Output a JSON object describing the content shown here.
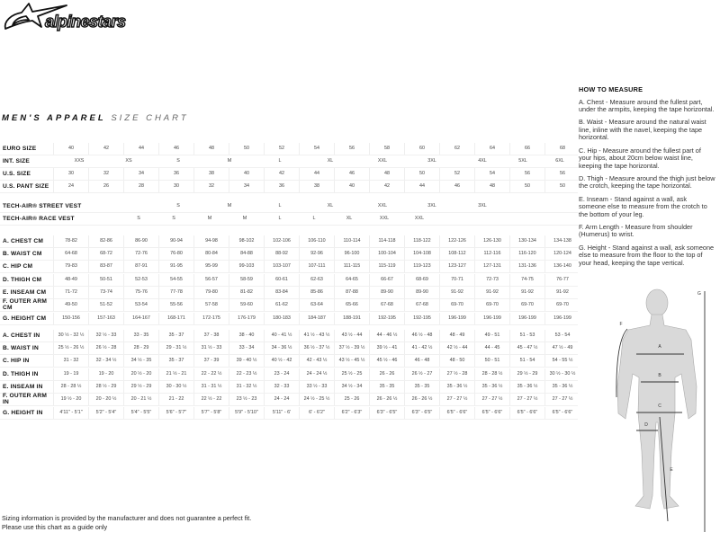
{
  "brand": "alpinestars",
  "title": {
    "bold": "MEN'S APPAREL",
    "light": "SIZE CHART"
  },
  "size_rows": [
    {
      "label": "EURO SIZE",
      "values": [
        "40",
        "42",
        "44",
        "46",
        "48",
        "50",
        "52",
        "54",
        "56",
        "58",
        "60",
        "62",
        "64",
        "66",
        "68"
      ]
    },
    {
      "label": "INT. SIZE",
      "values": [
        "XXS",
        "XS",
        "S",
        "M",
        "L",
        "XL",
        "XXL",
        "3XL",
        "4XL",
        "5XL",
        "6XL"
      ]
    },
    {
      "label": "U.S. SIZE",
      "values": [
        "30",
        "32",
        "34",
        "36",
        "38",
        "40",
        "42",
        "44",
        "46",
        "48",
        "50",
        "52",
        "54",
        "56",
        "56"
      ]
    },
    {
      "label": "U.S. PANT SIZE",
      "values": [
        "24",
        "26",
        "28",
        "30",
        "32",
        "34",
        "36",
        "38",
        "40",
        "42",
        "44",
        "46",
        "48",
        "50",
        "50"
      ]
    }
  ],
  "vest_rows": [
    {
      "label": "TECH-AIR® STREET VEST",
      "values": [
        "S",
        "M",
        "L",
        "XL",
        "XXL",
        "3XL",
        "3XL"
      ]
    },
    {
      "label": "TECH-AIR® RACE VEST",
      "values": [
        "S",
        "S",
        "M",
        "M",
        "L",
        "L",
        "XL",
        "XXL",
        "XXL"
      ]
    }
  ],
  "cm_rows": [
    {
      "label": "A. CHEST CM",
      "values": [
        "78-82",
        "82-86",
        "86-90",
        "90-94",
        "94-98",
        "98-102",
        "102-106",
        "106-110",
        "110-114",
        "114-118",
        "118-122",
        "122-126",
        "126-130",
        "130-134",
        "134-138"
      ]
    },
    {
      "label": "B. WAIST CM",
      "values": [
        "64-68",
        "68-72",
        "72-76",
        "76-80",
        "80-84",
        "84-88",
        "88-92",
        "92-96",
        "96-100",
        "100-104",
        "104-108",
        "108-112",
        "112-116",
        "116-120",
        "120-124"
      ]
    },
    {
      "label": "C. HIP CM",
      "values": [
        "79-83",
        "83-87",
        "87-91",
        "91-95",
        "95-99",
        "99-103",
        "103-107",
        "107-111",
        "111-115",
        "115-119",
        "119-123",
        "123-127",
        "127-131",
        "131-136",
        "136-140"
      ]
    },
    {
      "label": "D. THIGH CM",
      "values": [
        "48-49",
        "50-51",
        "52-53",
        "54-55",
        "56-57",
        "58-59",
        "60-61",
        "62-63",
        "64-65",
        "66-67",
        "68-69",
        "70-71",
        "72-73",
        "74-75",
        "76-77"
      ]
    },
    {
      "label": "E. INSEAM CM",
      "values": [
        "71-72",
        "73-74",
        "75-76",
        "77-78",
        "79-80",
        "81-82",
        "83-84",
        "85-86",
        "87-88",
        "89-90",
        "89-90",
        "91-92",
        "91-92",
        "91-92",
        "91-92"
      ]
    },
    {
      "label": "F. OUTER ARM CM",
      "values": [
        "49-50",
        "51-52",
        "53-54",
        "55-56",
        "57-58",
        "59-60",
        "61-62",
        "63-64",
        "65-66",
        "67-68",
        "67-68",
        "69-70",
        "69-70",
        "69-70",
        "69-70"
      ]
    },
    {
      "label": "G. HEIGHT CM",
      "values": [
        "150-156",
        "157-163",
        "164-167",
        "168-171",
        "172-175",
        "176-179",
        "180-183",
        "184-187",
        "188-191",
        "192-195",
        "192-195",
        "196-199",
        "196-199",
        "196-199",
        "196-199"
      ]
    }
  ],
  "in_rows": [
    {
      "label": "A. CHEST IN",
      "values": [
        "30 ½ - 32 ½",
        "32 ½ - 33",
        "33 - 35",
        "35 - 37",
        "37 - 38",
        "38 - 40",
        "40 - 41 ½",
        "41 ½ - 43 ½",
        "43 ½ - 44",
        "44 - 46 ½",
        "46 ½ - 48",
        "48 - 49",
        "49 - 51",
        "51 - 53",
        "53 - 54"
      ]
    },
    {
      "label": "B. WAIST IN",
      "values": [
        "25 ½ - 26 ½",
        "26 ½ - 28",
        "28 - 29",
        "29 - 31 ½",
        "31 ½ - 33",
        "33 - 34",
        "34 - 36 ½",
        "36 ½ - 37 ½",
        "37 ½ - 39 ½",
        "39 ½ - 41",
        "41 - 42 ½",
        "42 ½ - 44",
        "44 - 45",
        "45 - 47 ½",
        "47 ½ - 49"
      ]
    },
    {
      "label": "C. HIP IN",
      "values": [
        "31 - 32",
        "32 - 34 ½",
        "34 ½ - 35",
        "35 - 37",
        "37 - 39",
        "39 - 40 ½",
        "40 ½ - 42",
        "42 - 43 ½",
        "43 ½ - 45 ½",
        "45 ½ - 46",
        "46 - 48",
        "48 - 50",
        "50 - 51",
        "51 - 54",
        "54 - 55 ½"
      ]
    },
    {
      "label": "D. THIGH IN",
      "values": [
        "19 - 19",
        "19 - 20",
        "20 ½ - 20",
        "21 ½ - 21",
        "22 - 22 ½",
        "22 - 23 ½",
        "23 - 24",
        "24 - 24 ½",
        "25 ½ - 25",
        "26 - 26",
        "26 ½ - 27",
        "27 ½ - 28",
        "28 - 28 ½",
        "29 ½ - 29",
        "30 ½ - 30 ½"
      ]
    },
    {
      "label": "E. INSEAM IN",
      "values": [
        "28 - 28 ½",
        "28 ½ - 29",
        "29 ½ - 29",
        "30 - 30 ½",
        "31 - 31 ½",
        "31 - 32 ½",
        "32 - 33",
        "33 ½ - 33",
        "34 ½ - 34",
        "35 - 35",
        "35 - 35",
        "35 - 36 ½",
        "35 - 36 ½",
        "35 - 36 ½",
        "35 - 36 ½"
      ]
    },
    {
      "label": "F. OUTER ARM IN",
      "values": [
        "19 ½ - 20",
        "20 - 20 ½",
        "20 - 21 ½",
        "21 - 22",
        "22 ½ - 22",
        "23 ½ - 23",
        "24 - 24",
        "24 ½ - 25 ½",
        "25 - 26",
        "26 - 26 ½",
        "26 - 26 ½",
        "27 - 27 ½",
        "27 - 27 ½",
        "27 - 27 ½",
        "27 - 27 ½"
      ]
    },
    {
      "label": "G. HEIGHT IN",
      "values": [
        "4'11\" - 5'1\"",
        "5'2\" - 5'4\"",
        "5'4\" - 5'5\"",
        "5'6\" - 5'7\"",
        "5'7\" - 5'8\"",
        "5'9\" - 5'10\"",
        "5'11\" - 6'",
        "6' - 6'2\"",
        "6'2\" - 6'3\"",
        "6'3\" - 6'5\"",
        "6'3\" - 6'5\"",
        "6'5\" - 6'6\"",
        "6'5\" - 6'6\"",
        "6'5\" - 6'6\"",
        "6'5\" - 6'6\""
      ]
    }
  ],
  "how_to_measure": {
    "heading": "HOW TO MEASURE",
    "items": [
      "A. Chest - Measure around the fullest part, under the armpits, keeping the tape horizontal.",
      "B. Waist - Measure around the natural waist line, inline with the navel, keeping the tape horizontal.",
      "C. Hip - Measure around the fullest part of your hips, about 20cm below waist line, keeping the tape horizontal.",
      "D. Thigh - Measure around the thigh just below the crotch, keeping the tape horizontal.",
      "E. Inseam - Stand against a wall, ask someone else to measure from the crotch to the bottom of your leg.",
      "F. Arm Length - Measure from shoulder (Humerus) to wrist.",
      "G. Height - Stand against a wall, ask someone else to measure from the floor to the top of your head, keeping the tape vertical."
    ]
  },
  "figure_labels": {
    "a": "A",
    "b": "B",
    "c": "C",
    "d": "D",
    "e": "E",
    "f": "F",
    "g": "G"
  },
  "footer": {
    "line1": "Sizing information is provided by the manufacturer and does not guarantee a perfect fit.",
    "line2": "Please use this chart as a guide only"
  }
}
